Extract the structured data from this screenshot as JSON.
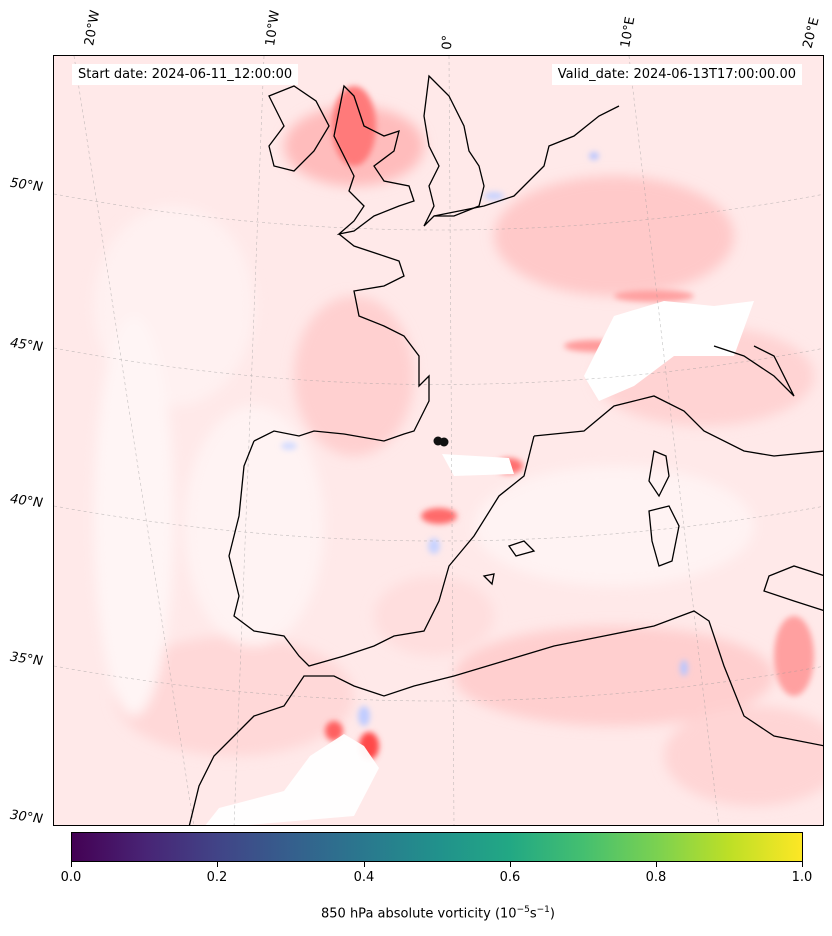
{
  "map": {
    "start_date": "Start date: 2024-06-11_12:00:00",
    "valid_date": "Valid_date: 2024-06-13T17:00:00.00",
    "longitude_labels": [
      "20°W",
      "10°W",
      "0°",
      "10°E",
      "20°E"
    ],
    "latitude_labels": [
      "50°N",
      "45°N",
      "40°N",
      "35°N",
      "30°N"
    ],
    "field_colors": {
      "background": "#ffe9e9",
      "positive": "#ff7a7a",
      "strong_positive": "#ff4040",
      "negative": "#b9c6ff",
      "land_outline": "#000000"
    }
  },
  "colorbar": {
    "ticks": [
      "0.0",
      "0.2",
      "0.4",
      "0.6",
      "0.8",
      "1.0"
    ],
    "label_prefix": "850 hPa absolute vorticity (10",
    "label_exp1": "−5",
    "label_mid": "s",
    "label_exp2": "−1",
    "label_suffix": ")",
    "colormap": "viridis"
  }
}
